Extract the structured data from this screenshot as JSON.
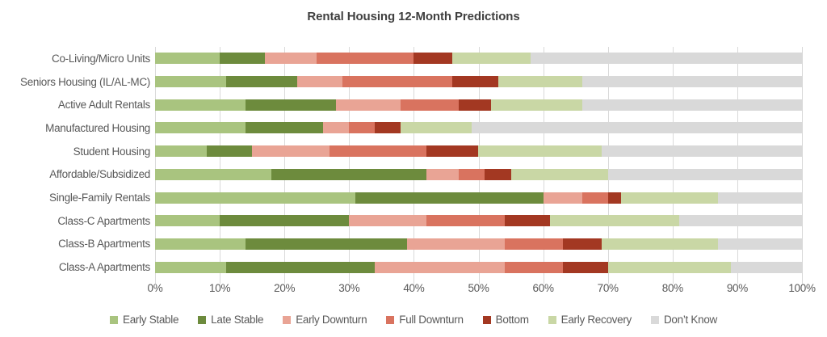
{
  "chart_data": {
    "type": "bar",
    "variant": "horizontal-stacked",
    "title": "Rental Housing 12-Month Predictions",
    "categories": [
      "Co-Living/Micro Units",
      "Seniors Housing (IL/AL-MC)",
      "Active Adult Rentals",
      "Manufactured Housing",
      "Student Housing",
      "Affordable/Subsidized",
      "Single-Family Rentals",
      "Class-C Apartments",
      "Class-B Apartments",
      "Class-A Apartments"
    ],
    "series": [
      {
        "name": "Early Stable",
        "color": "#a9c47f",
        "values": [
          10,
          11,
          14,
          14,
          8,
          18,
          31,
          10,
          14,
          11
        ]
      },
      {
        "name": "Late Stable",
        "color": "#6d8b3d",
        "values": [
          7,
          11,
          14,
          12,
          7,
          24,
          29,
          20,
          25,
          23
        ]
      },
      {
        "name": "Early Downturn",
        "color": "#e9a495",
        "values": [
          8,
          7,
          10,
          4,
          12,
          5,
          6,
          12,
          15,
          20
        ]
      },
      {
        "name": "Full Downturn",
        "color": "#d9735f",
        "values": [
          15,
          17,
          9,
          4,
          15,
          4,
          4,
          12,
          9,
          9
        ]
      },
      {
        "name": "Bottom",
        "color": "#a33822",
        "values": [
          6,
          7,
          5,
          4,
          8,
          4,
          2,
          7,
          6,
          7
        ]
      },
      {
        "name": "Early Recovery",
        "color": "#c9d7a5",
        "values": [
          12,
          13,
          14,
          11,
          19,
          15,
          15,
          20,
          18,
          19
        ]
      },
      {
        "name": "Don’t Know",
        "color": "#d9d9d9",
        "values": [
          42,
          34,
          34,
          51,
          31,
          30,
          13,
          19,
          13,
          11
        ]
      }
    ],
    "x_axis": {
      "min": 0,
      "max": 100,
      "tick_step": 10,
      "tick_labels": [
        "0%",
        "10%",
        "20%",
        "30%",
        "40%",
        "50%",
        "60%",
        "70%",
        "80%",
        "90%",
        "100%"
      ]
    },
    "grid": true,
    "legend_position": "bottom",
    "text_color": "#595959",
    "title_color": "#404040",
    "gridline_color": "#d9d9d9"
  }
}
